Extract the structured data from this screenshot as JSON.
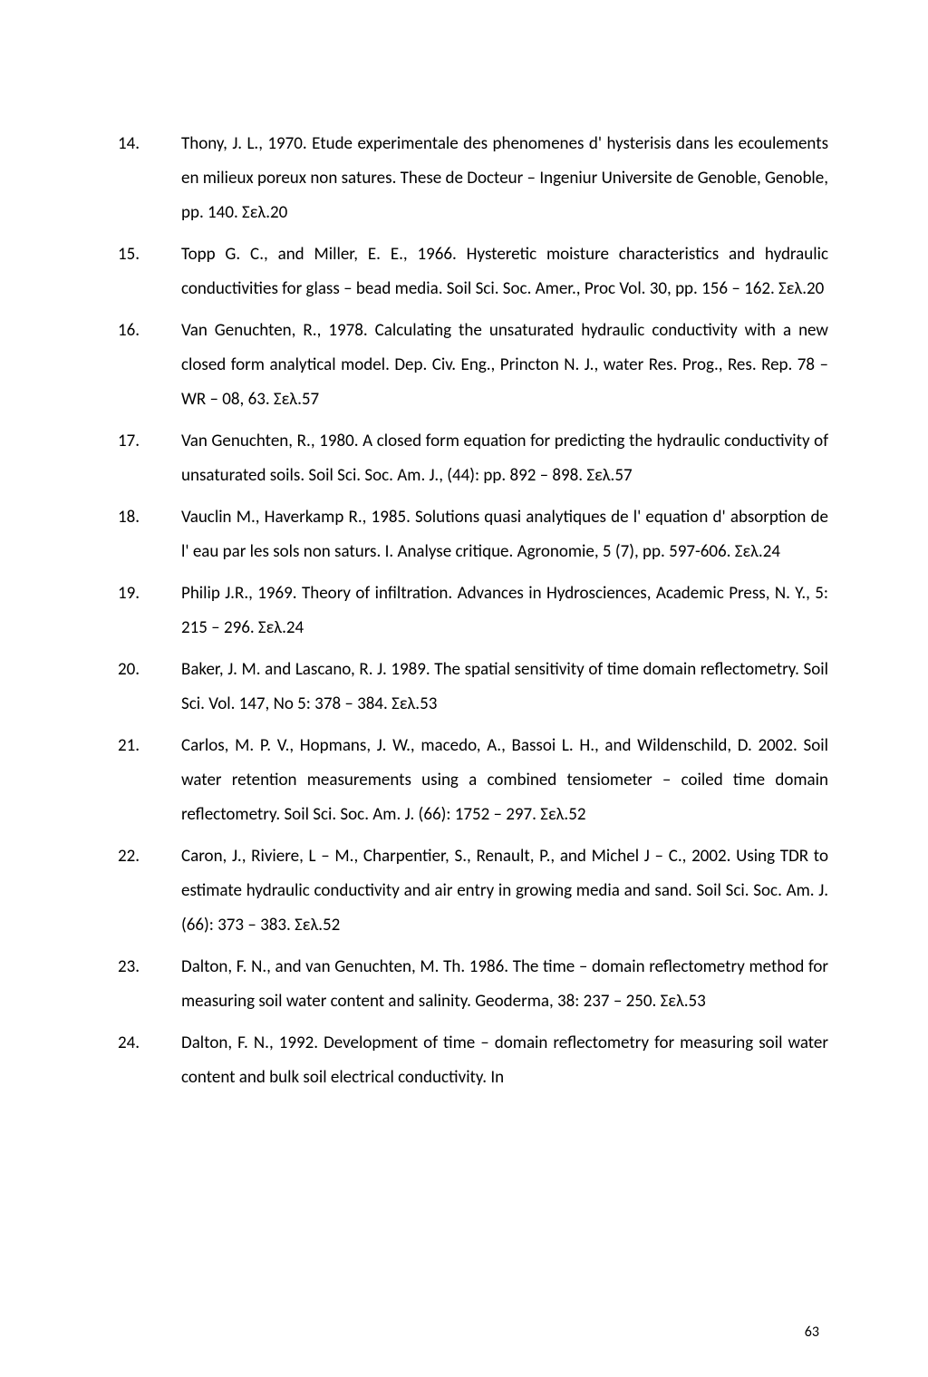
{
  "page_number": "63",
  "references": [
    {
      "num": "14.",
      "text": "Thony, J. L., 1970. Etude experimentale des phenomenes d' hysterisis dans les ecoulements en milieux poreux non satures. These de Docteur – Ingeniur Universite de Genoble, Genoble, pp. 140. Σελ.20"
    },
    {
      "num": "15.",
      "text": "Topp G. C., and Miller, E. E., 1966. Hysteretic moisture characteristics and hydraulic conductivities for glass – bead media. Soil Sci. Soc. Amer., Proc Vol. 30, pp. 156 – 162. Σελ.20"
    },
    {
      "num": "16.",
      "text": "Van Genuchten, R., 1978. Calculating the unsaturated hydraulic conductivity with a new closed form analytical model. Dep. Civ. Eng., Princton N. J., water Res. Prog., Res. Rep. 78 – WR – 08, 63. Σελ.57"
    },
    {
      "num": "17.",
      "text": "Van Genuchten, R., 1980. A closed form equation for predicting the hydraulic conductivity of unsaturated soils. Soil Sci. Soc. Am. J., (44): pp. 892 – 898. Σελ.57"
    },
    {
      "num": "18.",
      "text": "Vauclin M., Haverkamp R., 1985. Solutions quasi analytiques de l' equation d' absorption de l' eau par les sols non saturs. I. Analyse critique. Agronomie, 5 (7), pp. 597-606. Σελ.24"
    },
    {
      "num": "19.",
      "text": "Philip J.R., 1969. Theory of infiltration. Advances in Hydrosciences, Academic Press, N. Y., 5: 215 – 296. Σελ.24"
    },
    {
      "num": "20.",
      "text": "Baker, J. M. and Lascano, R. J. 1989. The spatial sensitivity of time domain reflectometry. Soil Sci. Vol. 147, No 5: 378 – 384. Σελ.53"
    },
    {
      "num": "21.",
      "text": "Carlos, M. P. V., Hopmans, J. W., macedo, A., Bassoi L. H., and Wildenschild, D. 2002. Soil water retention measurements using a combined tensiometer – coiled time domain reflectometry. Soil Sci. Soc. Am. J. (66): 1752 – 297. Σελ.52"
    },
    {
      "num": "22.",
      "text": "Caron, J., Riviere, L – M., Charpentier, S., Renault, P., and Michel J – C., 2002. Using TDR to estimate hydraulic conductivity and air entry in growing media and sand. Soil Sci. Soc. Am. J. (66): 373 – 383. Σελ.52"
    },
    {
      "num": "23.",
      "text": "Dalton, F. N., and van Genuchten, M. Th. 1986. The time – domain reflectometry method for measuring soil water content and salinity. Geoderma, 38: 237 – 250. Σελ.53"
    },
    {
      "num": "24.",
      "text": "Dalton, F. N., 1992. Development of time – domain reflectometry for measuring soil water content and bulk soil electrical conductivity. In"
    }
  ]
}
